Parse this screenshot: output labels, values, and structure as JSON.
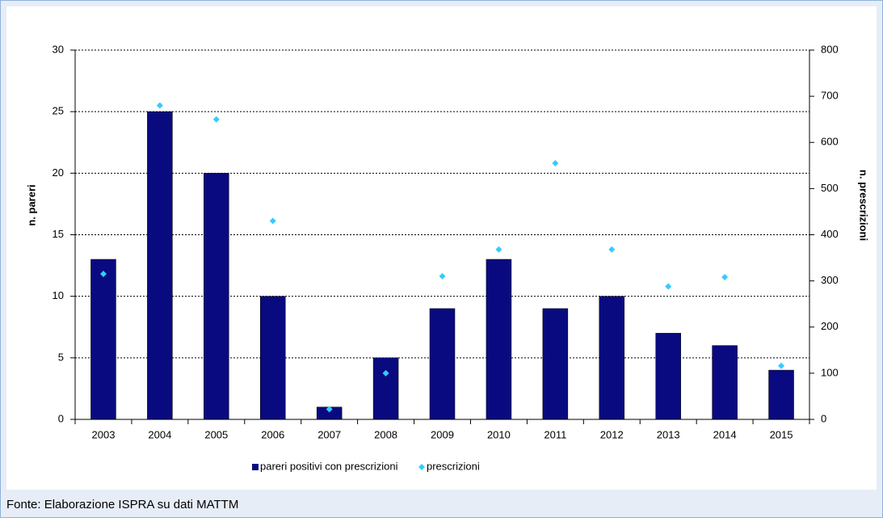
{
  "chart_data": {
    "type": "bar_scatter",
    "categories": [
      "2003",
      "2004",
      "2005",
      "2006",
      "2007",
      "2008",
      "2009",
      "2010",
      "2011",
      "2012",
      "2013",
      "2014",
      "2015"
    ],
    "series": [
      {
        "name": "pareri positivi con prescrizioni",
        "color": "#0a0a80",
        "type": "bar",
        "values": [
          13,
          25,
          20,
          10,
          1,
          5,
          9,
          13,
          9,
          10,
          7,
          6,
          4
        ]
      },
      {
        "name": "prescrizioni",
        "color": "#33ccff",
        "type": "scatter",
        "axis": "y2",
        "values": [
          315,
          680,
          650,
          430,
          22,
          100,
          310,
          368,
          555,
          368,
          288,
          308,
          116
        ]
      }
    ],
    "ylabel": "n. pareri",
    "y2label": "n. prescrizioni",
    "ylim": [
      0,
      30
    ],
    "yticks": [
      0,
      5,
      10,
      15,
      20,
      25,
      30
    ],
    "y2lim": [
      0,
      800
    ],
    "y2ticks": [
      0,
      100,
      200,
      300,
      400,
      500,
      600,
      700,
      800
    ],
    "grid": true,
    "legend": "bottom",
    "source": "Fonte: Elaborazione ISPRA su dati MATTM"
  }
}
